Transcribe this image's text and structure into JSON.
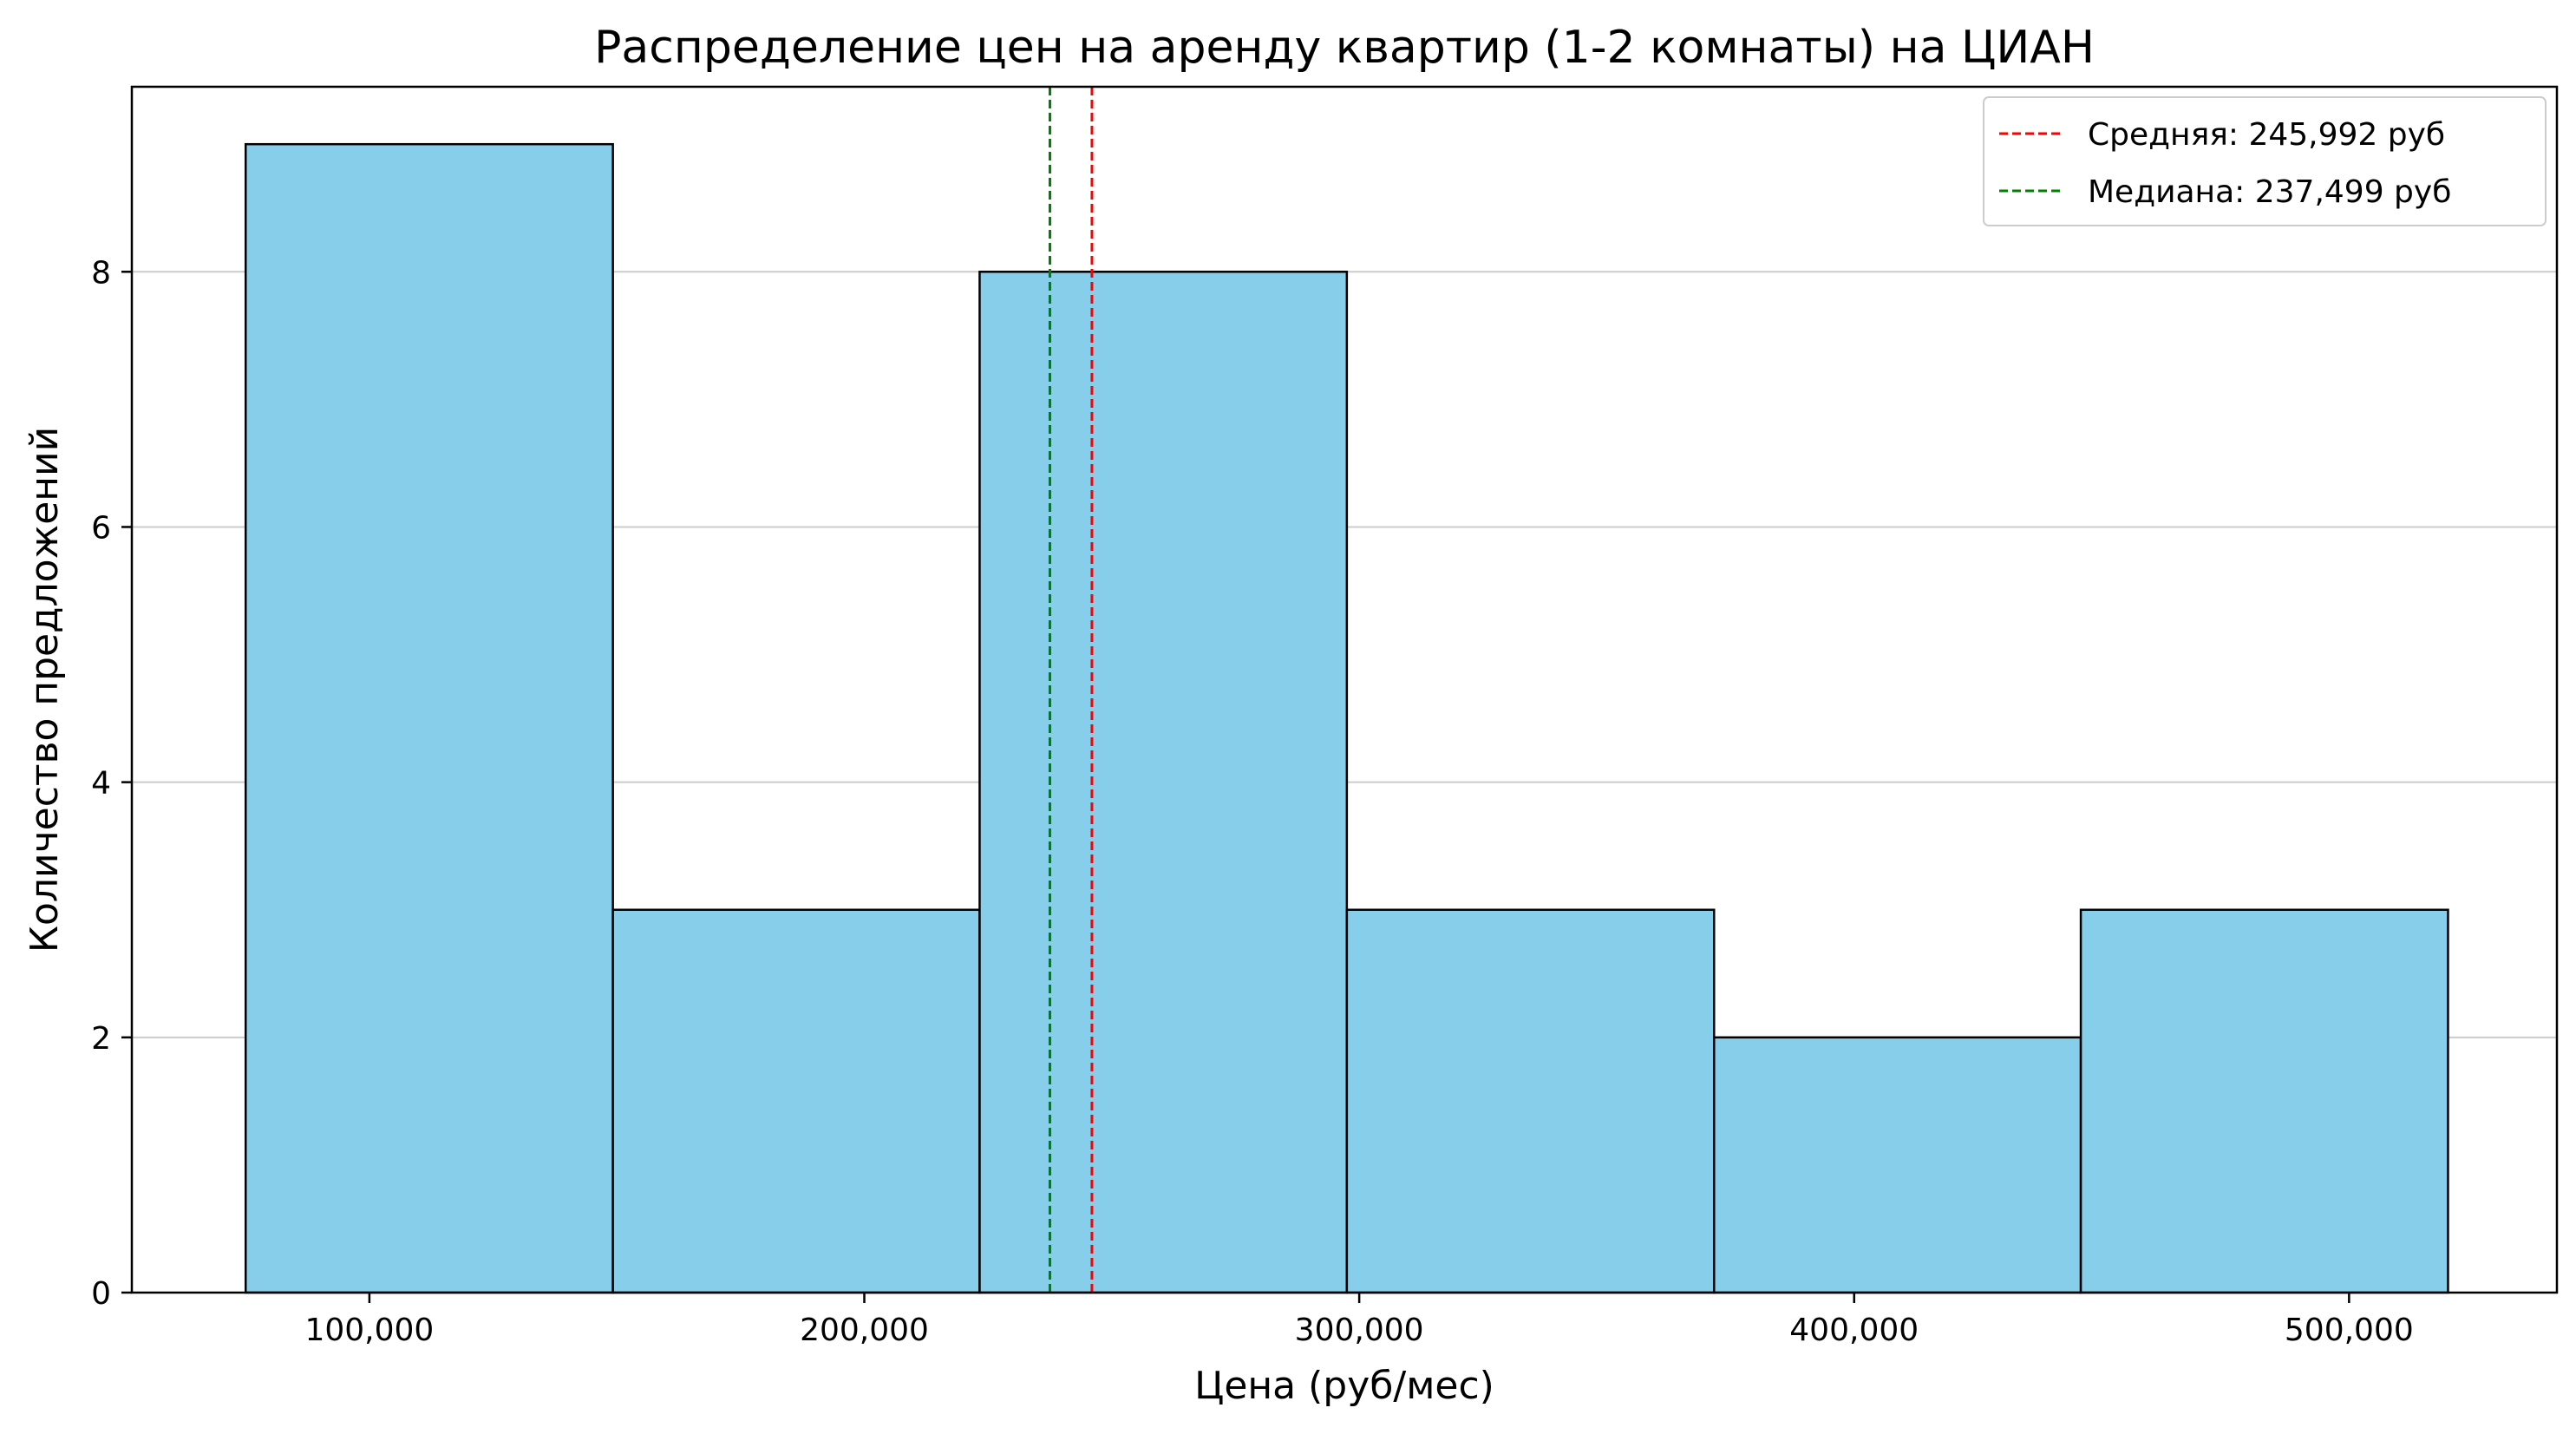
{
  "chart_data": {
    "type": "bar",
    "subtype": "histogram",
    "title": "Распределение цен на аренду квартир (1-2 комнаты) на ЦИАН",
    "xlabel": "Цена (руб/мес)",
    "ylabel": "Количество предложений",
    "xlim": [
      52000,
      542000
    ],
    "ylim": [
      0,
      9.45
    ],
    "x_ticks": [
      100000,
      200000,
      300000,
      400000,
      500000
    ],
    "x_tick_labels": [
      "100,000",
      "200,000",
      "300,000",
      "400,000",
      "500,000"
    ],
    "y_ticks": [
      0,
      2,
      4,
      6,
      8
    ],
    "y_tick_labels": [
      "0",
      "2",
      "4",
      "6",
      "8"
    ],
    "grid": "horizontal",
    "bins": [
      {
        "x0": 75000,
        "x1": 149200,
        "count": 9
      },
      {
        "x0": 149200,
        "x1": 223300,
        "count": 3
      },
      {
        "x0": 223300,
        "x1": 297500,
        "count": 8
      },
      {
        "x0": 297500,
        "x1": 371700,
        "count": 3
      },
      {
        "x0": 371700,
        "x1": 445800,
        "count": 2
      },
      {
        "x0": 445800,
        "x1": 520000,
        "count": 3
      }
    ],
    "reference_lines": [
      {
        "label": "Средняя: 245,992 руб",
        "value": 245992,
        "color": "#ff0000",
        "style": "dashed"
      },
      {
        "label": "Медиана: 237,499 руб",
        "value": 237499,
        "color": "#008000",
        "style": "dashed"
      }
    ],
    "legend_position": "top-right",
    "bar_color": "#87ceeb",
    "bar_edge_color": "#000000",
    "grid_color": "#cccccc"
  }
}
